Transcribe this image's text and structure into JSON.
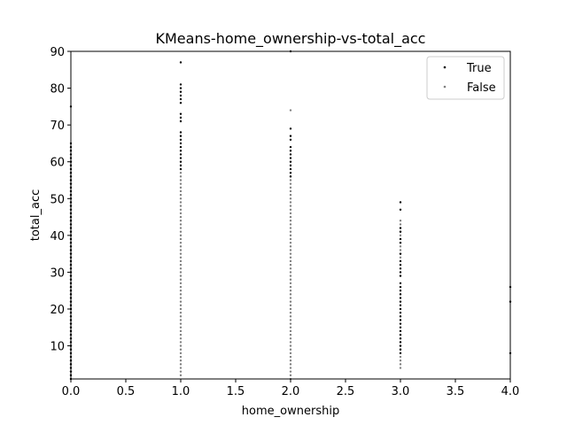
{
  "chart_data": {
    "type": "scatter",
    "title": "KMeans-home_ownership-vs-total_acc",
    "xlabel": "home_ownership",
    "ylabel": "total_acc",
    "xlim": [
      0.0,
      4.0
    ],
    "ylim": [
      1,
      90
    ],
    "xticks": [
      "0.0",
      "0.5",
      "1.0",
      "1.5",
      "2.0",
      "2.5",
      "3.0",
      "3.5",
      "4.0"
    ],
    "yticks": [
      "10",
      "20",
      "30",
      "40",
      "50",
      "60",
      "70",
      "80",
      "90"
    ],
    "grid": false,
    "legend_position": "top-right",
    "series": [
      {
        "name": "True",
        "color": "#000000",
        "points": [
          {
            "x": 0,
            "ranges": [
              [
                1,
                65
              ]
            ],
            "y": [
              75
            ]
          },
          {
            "x": 1,
            "ranges": [
              [
                58,
                68
              ]
            ],
            "y": [
              71,
              72,
              73,
              76,
              77,
              78,
              79,
              80,
              81,
              87
            ]
          },
          {
            "x": 2,
            "ranges": [
              [
                56,
                63
              ]
            ],
            "y": [
              64,
              66,
              67,
              69,
              90
            ]
          },
          {
            "x": 3,
            "ranges": [
              [
                8,
                14
              ],
              [
                15,
                27
              ]
            ],
            "y": [
              29,
              30,
              31,
              32,
              33,
              35,
              38,
              39,
              41,
              42,
              47,
              49
            ]
          },
          {
            "x": 4,
            "ranges": [],
            "y": [
              8,
              22,
              26
            ]
          }
        ]
      },
      {
        "name": "False",
        "color": "#808080",
        "points": [
          {
            "x": 0,
            "ranges": [
              [
                1,
                60
              ]
            ],
            "y": []
          },
          {
            "x": 1,
            "ranges": [
              [
                2,
                58
              ]
            ],
            "y": []
          },
          {
            "x": 2,
            "ranges": [
              [
                1,
                56
              ]
            ],
            "y": [
              74
            ]
          },
          {
            "x": 3,
            "ranges": [
              [
                4,
                14
              ],
              [
                34,
                44
              ]
            ],
            "y": []
          }
        ]
      }
    ]
  }
}
